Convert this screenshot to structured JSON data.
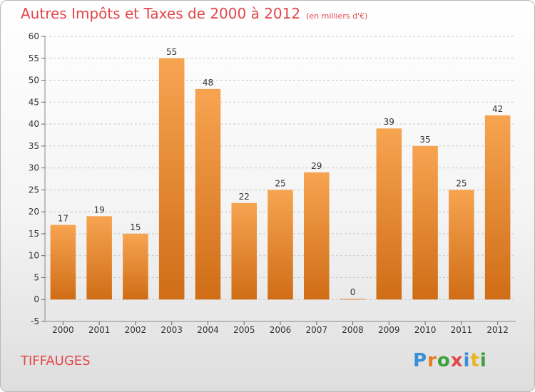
{
  "title": "Autres Impôts et Taxes de 2000 à 2012",
  "unit": "(en milliers d'€)",
  "commune": "TIFFAUGES",
  "logo": {
    "letters": [
      "P",
      "r",
      "o",
      "x",
      "i",
      "t",
      "i"
    ],
    "colors": [
      "#3a8fd8",
      "#e87a22",
      "#3aa13a",
      "#e2474b",
      "#3a8fd8",
      "#e8b422",
      "#3aa13a"
    ]
  },
  "chart_data": {
    "type": "bar",
    "categories": [
      "2000",
      "2001",
      "2002",
      "2003",
      "2004",
      "2005",
      "2006",
      "2007",
      "2008",
      "2009",
      "2010",
      "2011",
      "2012"
    ],
    "values": [
      17,
      19,
      15,
      55,
      48,
      22,
      25,
      29,
      0,
      39,
      35,
      25,
      42
    ],
    "data_labels": [
      "17",
      "19",
      "15",
      "55",
      "48",
      "22",
      "25",
      "29",
      "0",
      "39",
      "35",
      "25",
      "42"
    ],
    "y_ticks": [
      "-5",
      "0",
      "5",
      "10",
      "15",
      "20",
      "25",
      "30",
      "35",
      "40",
      "45",
      "50",
      "55",
      "60"
    ],
    "ylim": [
      -5,
      60
    ],
    "grid": true,
    "bar_color": "#f0922e"
  }
}
